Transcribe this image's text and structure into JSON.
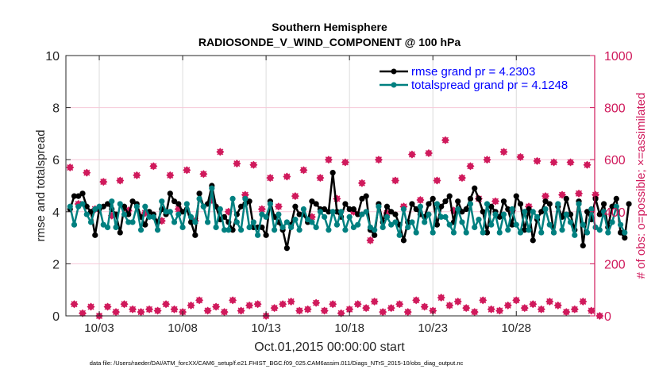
{
  "chart_data": {
    "type": "line",
    "title": "Southern Hemisphere",
    "subtitle": "RADIOSONDE_V_WIND_COMPONENT @ 100 hPa",
    "xlabel": "Oct.01,2015 00:00:00 start",
    "ylabel": "rmse and totalspread",
    "ylabel_right": "# of obs: o=possible; ×=assimilated",
    "ylim": [
      0,
      10
    ],
    "ylim_right": [
      0,
      1000
    ],
    "xlim_days": [
      0,
      31.7
    ],
    "grid": true,
    "legend_position": "top-right",
    "y_ticks": [
      "0",
      "2",
      "4",
      "6",
      "8",
      "10"
    ],
    "y_tick_values": [
      0,
      2,
      4,
      6,
      8,
      10
    ],
    "y_right_ticks": [
      "0",
      "200",
      "400",
      "600",
      "800",
      "1000"
    ],
    "y_right_tick_values": [
      0,
      200,
      400,
      600,
      800,
      1000
    ],
    "x_ticks": [
      "10/03",
      "10/08",
      "10/13",
      "10/18",
      "10/23",
      "10/28"
    ],
    "x_tick_days": [
      2,
      7,
      12,
      17,
      22,
      27
    ],
    "time_step_days": 0.25,
    "series": [
      {
        "name": "rmse",
        "legend": "rmse grand pr = 4.2303",
        "color": "#000000",
        "values": [
          4.1,
          4.6,
          4.6,
          4.7,
          4.2,
          4.0,
          3.1,
          4.1,
          4.2,
          4.3,
          4.1,
          3.9,
          3.2,
          4.2,
          3.9,
          4.4,
          4.3,
          3.8,
          3.5,
          4.0,
          3.9,
          3.6,
          4.1,
          3.9,
          4.7,
          4.4,
          4.3,
          4.0,
          4.1,
          3.6,
          3.1,
          4.7,
          4.2,
          4.3,
          5.0,
          4.2,
          3.7,
          3.8,
          3.6,
          3.3,
          3.9,
          4.2,
          4.3,
          4.4,
          3.4,
          3.4,
          3.4,
          3.1,
          4.4,
          3.8,
          3.6,
          3.3,
          2.6,
          3.5,
          4.2,
          3.9,
          3.9,
          3.6,
          4.4,
          4.3,
          4.1,
          4.1,
          4.0,
          5.5,
          4.0,
          3.8,
          4.3,
          4.1,
          4.1,
          3.9,
          4.5,
          4.6,
          3.3,
          3.1,
          4.3,
          3.6,
          4.2,
          4.0,
          3.9,
          3.5,
          2.9,
          3.6,
          4.3,
          4.1,
          3.9,
          3.8,
          4.3,
          4.5,
          3.5,
          4.2,
          4.4,
          4.6,
          3.6,
          4.4,
          4.0,
          4.1,
          4.5,
          4.9,
          4.5,
          4.0,
          3.2,
          4.2,
          4.0,
          3.8,
          4.4,
          4.1,
          3.5,
          4.6,
          4.3,
          3.3,
          4.1,
          2.9,
          3.7,
          4.0,
          4.4,
          4.3,
          3.2,
          4.2,
          3.8,
          4.5,
          3.9,
          3.3,
          4.4,
          2.7,
          4.0,
          3.7,
          4.5,
          3.9,
          4.3,
          3.4,
          4.2,
          4.5,
          3.2,
          3.0,
          4.3
        ]
      },
      {
        "name": "totalspread",
        "legend": "totalspread grand pr = 4.1248",
        "color": "#008080",
        "values": [
          4.2,
          3.5,
          4.2,
          4.3,
          3.9,
          3.6,
          4.1,
          4.2,
          3.5,
          3.4,
          4.4,
          3.4,
          4.3,
          3.9,
          3.6,
          3.6,
          4.2,
          3.3,
          4.2,
          3.8,
          3.8,
          3.3,
          4.4,
          4.0,
          4.0,
          3.6,
          3.9,
          3.4,
          4.3,
          3.8,
          3.6,
          4.5,
          4.2,
          3.6,
          4.9,
          3.4,
          4.1,
          3.3,
          3.3,
          4.5,
          3.6,
          3.3,
          4.5,
          3.4,
          3.6,
          3.1,
          3.9,
          3.8,
          4.3,
          3.3,
          3.9,
          3.4,
          3.6,
          3.4,
          3.7,
          3.3,
          4.1,
          3.7,
          3.6,
          3.4,
          4.0,
          3.8,
          3.3,
          4.0,
          3.5,
          4.0,
          3.3,
          3.8,
          3.4,
          3.5,
          3.9,
          4.0,
          3.4,
          3.3,
          4.2,
          3.4,
          3.8,
          3.5,
          3.6,
          3.1,
          4.1,
          3.4,
          3.6,
          3.2,
          4.2,
          3.6,
          3.9,
          3.2,
          4.3,
          3.8,
          3.8,
          3.5,
          3.2,
          4.1,
          3.6,
          3.2,
          4.3,
          3.4,
          3.7,
          3.2,
          4.3,
          3.5,
          3.9,
          3.2,
          3.9,
          3.3,
          4.1,
          3.5,
          3.2,
          4.0,
          3.3,
          4.0,
          3.8,
          3.2,
          4.1,
          3.5,
          3.2,
          4.3,
          3.3,
          3.9,
          3.6,
          3.1,
          4.3,
          3.5,
          3.2,
          4.1,
          3.4,
          3.3,
          4.0,
          3.2,
          3.6,
          4.2,
          3.5,
          3.2
        ]
      }
    ],
    "obs_series": {
      "name": "# of obs",
      "color": "#d01a5c",
      "possible": [
        570,
        45,
        430,
        10,
        550,
        35,
        410,
        0,
        515,
        35,
        385,
        15,
        520,
        45,
        405,
        25,
        540,
        15,
        395,
        25,
        575,
        20,
        365,
        45,
        540,
        25,
        410,
        15,
        560,
        40,
        365,
        60,
        545,
        20,
        445,
        35,
        630,
        15,
        400,
        60,
        585,
        20,
        465,
        40,
        580,
        45,
        410,
        0,
        530,
        30,
        420,
        45,
        535,
        55,
        460,
        20,
        560,
        25,
        380,
        50,
        530,
        20,
        600,
        45,
        450,
        10,
        590,
        25,
        400,
        45,
        510,
        30,
        290,
        55,
        600,
        15,
        395,
        30,
        520,
        45,
        420,
        15,
        620,
        60,
        445,
        35,
        625,
        20,
        520,
        70,
        675,
        40,
        405,
        55,
        530,
        30,
        575,
        15,
        450,
        60,
        600,
        25,
        440,
        20,
        630,
        40,
        405,
        60,
        610,
        30,
        420,
        45,
        595,
        25,
        460,
        55,
        590,
        40,
        465,
        15,
        590,
        25,
        470,
        55,
        580,
        20,
        465,
        0
      ]
    }
  },
  "footer": {
    "data_file": "data file: /Users/raeder/DAI/ATM_forcXX/CAM6_setup/f.e21.FHIST_BGC.f09_025.CAM6assim.011/Diags_NTrS_2015-10/obs_diag_output.nc"
  }
}
